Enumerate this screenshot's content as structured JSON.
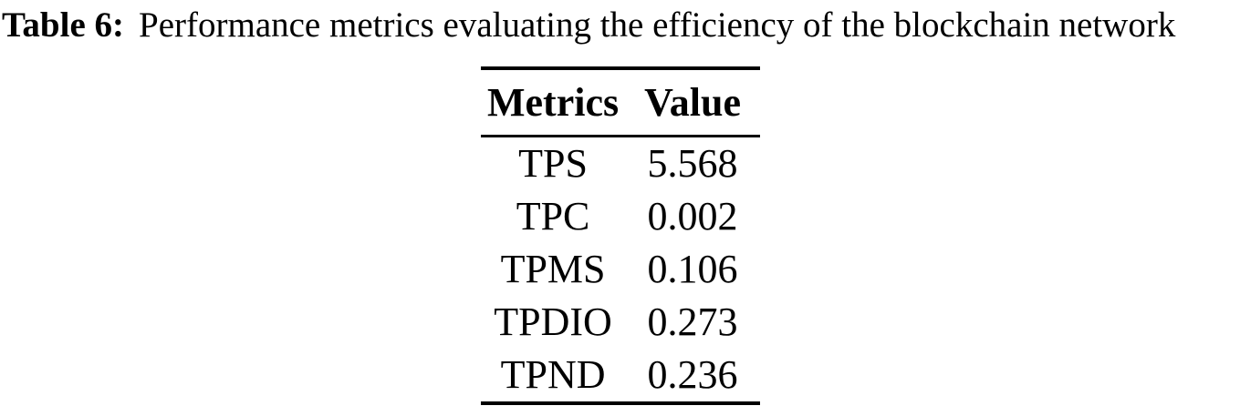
{
  "caption": {
    "label": "Table 6:",
    "text": "Performance metrics evaluating the efficiency of the blockchain network"
  },
  "table": {
    "headers": [
      "Metrics",
      "Value"
    ],
    "rows": [
      {
        "metric": "TPS",
        "value": "5.568"
      },
      {
        "metric": "TPC",
        "value": "0.002"
      },
      {
        "metric": "TPMS",
        "value": "0.106"
      },
      {
        "metric": "TPDIO",
        "value": "0.273"
      },
      {
        "metric": "TPND",
        "value": "0.236"
      }
    ]
  },
  "chart_data": {
    "type": "table",
    "title": "Table 6: Performance metrics evaluating the efficiency of the blockchain network",
    "columns": [
      "Metrics",
      "Value"
    ],
    "rows": [
      [
        "TPS",
        5.568
      ],
      [
        "TPC",
        0.002
      ],
      [
        "TPMS",
        0.106
      ],
      [
        "TPDIO",
        0.273
      ],
      [
        "TPND",
        0.236
      ]
    ]
  },
  "colors": {
    "text": "#000000",
    "background": "#ffffff",
    "rule": "#000000"
  }
}
